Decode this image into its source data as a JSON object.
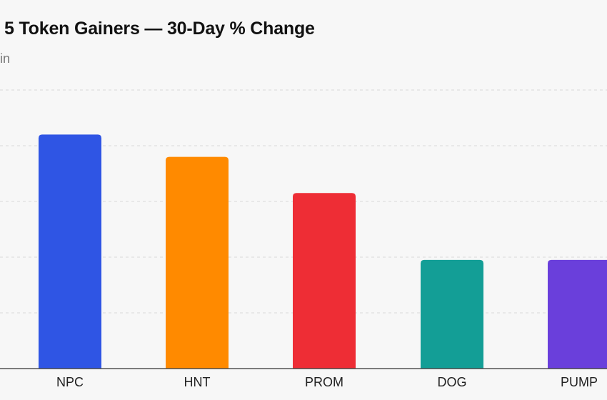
{
  "chart_data": {
    "type": "bar",
    "title": "5 Token Gainers — 30-Day % Change",
    "subtitle": "in",
    "xlabel": "",
    "ylabel": "",
    "categories": [
      "NPC",
      "HNT",
      "PROM",
      "DOG",
      "PUMP"
    ],
    "values": [
      42,
      38,
      31.5,
      19.5,
      19.5
    ],
    "ylim": [
      0,
      50
    ],
    "grid": true,
    "colors": [
      "#2f55e4",
      "#ff8a00",
      "#ee2d35",
      "#139e96",
      "#6a3fdb"
    ]
  }
}
